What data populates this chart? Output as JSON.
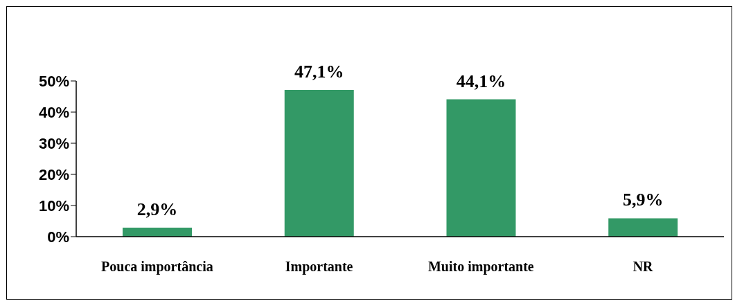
{
  "chart_data": {
    "type": "bar",
    "categories": [
      "Pouca importância",
      "Importante",
      "Muito importante",
      "NR"
    ],
    "values": [
      2.9,
      47.1,
      44.1,
      5.9
    ],
    "value_labels": [
      "2,9%",
      "47,1%",
      "44,1%",
      "5,9%"
    ],
    "color": "#339966",
    "ylim": [
      0,
      50
    ],
    "yticks": [
      {
        "value": 0,
        "label": "0%"
      },
      {
        "value": 10,
        "label": "10%"
      },
      {
        "value": 20,
        "label": "20%"
      },
      {
        "value": 30,
        "label": "30%"
      },
      {
        "value": 40,
        "label": "40%"
      },
      {
        "value": 50,
        "label": "50%"
      }
    ],
    "grid": false,
    "legend": false
  }
}
